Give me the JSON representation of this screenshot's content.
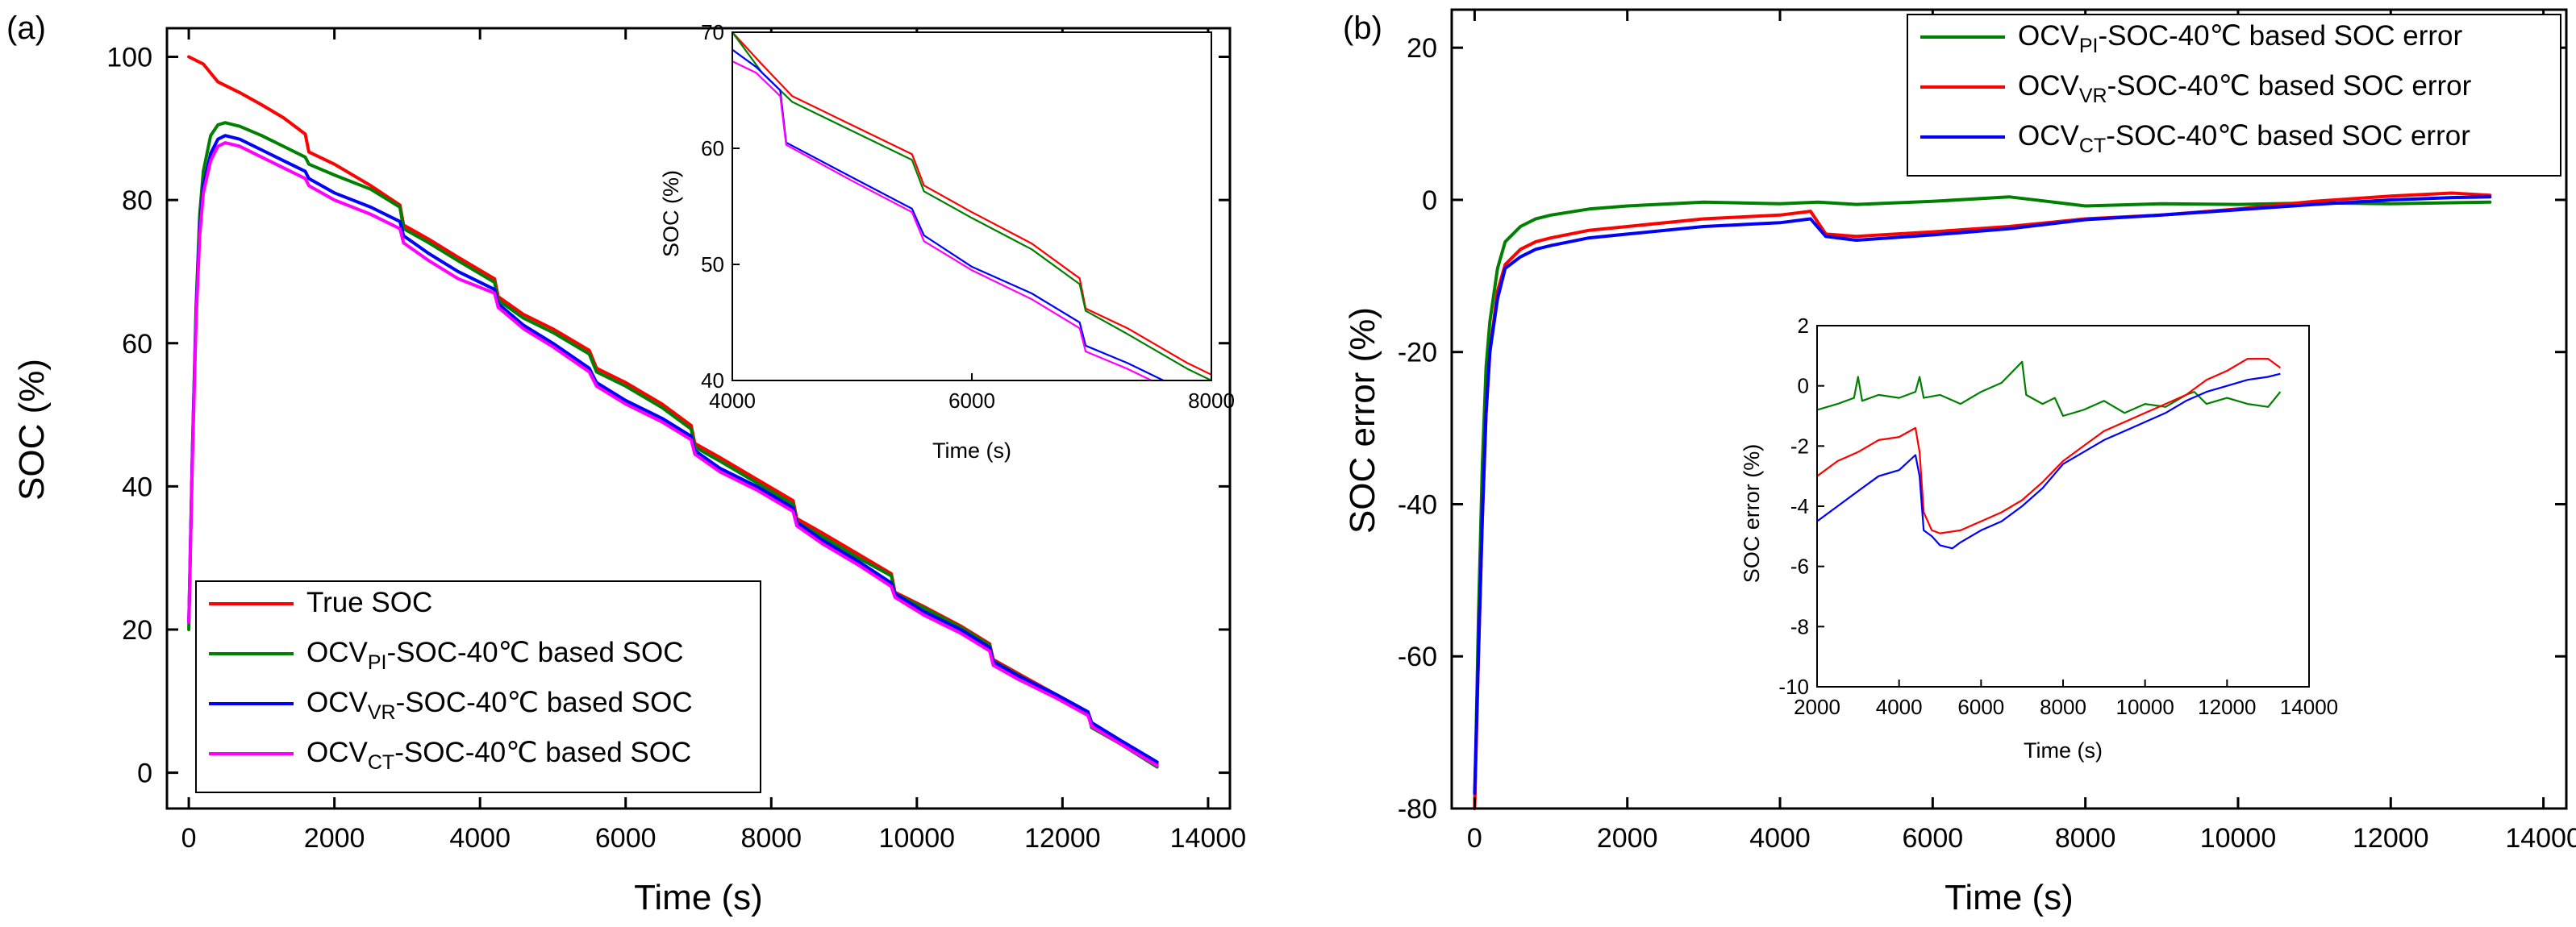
{
  "chart_data": [
    {
      "panel": "(a)",
      "type": "line",
      "title": "",
      "xlabel": "Time (s)",
      "ylabel": "SOC (%)",
      "xlim": [
        -300,
        14300
      ],
      "ylim": [
        -5,
        104
      ],
      "xticks": [
        0,
        2000,
        4000,
        6000,
        8000,
        10000,
        12000,
        14000
      ],
      "yticks": [
        0,
        20,
        40,
        60,
        80,
        100
      ],
      "legend_position": "bottom-left",
      "series": [
        {
          "key": "true",
          "name": "True SOC",
          "label_main": "True SOC",
          "label_sub": "",
          "label_rest": "",
          "color": "#ff0000",
          "x": [
            0,
            200,
            400,
            700,
            1000,
            1300,
            1600,
            1650,
            2000,
            2500,
            2900,
            2950,
            3300,
            3700,
            4200,
            4250,
            4600,
            5000,
            5500,
            5600,
            6000,
            6500,
            6900,
            6950,
            7300,
            7800,
            8300,
            8350,
            8700,
            9200,
            9650,
            9700,
            10100,
            10600,
            11000,
            11050,
            11400,
            11900,
            12350,
            12400,
            12800,
            13300
          ],
          "y": [
            100,
            99,
            96.5,
            95,
            93.3,
            91.5,
            89.2,
            86.7,
            85,
            82,
            79.3,
            76.5,
            74.5,
            72,
            69,
            66.5,
            64,
            62,
            59,
            56.5,
            54.5,
            51.5,
            48.5,
            46,
            44,
            41,
            38,
            35.5,
            33.5,
            30.5,
            27.8,
            25.2,
            23.2,
            20.5,
            18,
            15.8,
            13.8,
            11,
            8.5,
            6.5,
            4.2,
            1.2
          ]
        },
        {
          "key": "pi",
          "name": "OCVPI-SOC-40℃ based SOC",
          "label_main": "OCV",
          "label_sub": "PI",
          "label_rest": "-SOC-40℃ based SOC",
          "color": "#008000",
          "x": [
            0,
            50,
            100,
            150,
            200,
            300,
            400,
            500,
            700,
            1000,
            1300,
            1600,
            1650,
            2000,
            2500,
            2900,
            2950,
            3300,
            3700,
            4200,
            4250,
            4600,
            5000,
            5500,
            5600,
            6000,
            6500,
            6900,
            6950,
            7300,
            7800,
            8300,
            8350,
            8700,
            9200,
            9650,
            9700,
            10100,
            10600,
            11000,
            11050,
            11400,
            11900,
            12350,
            12400,
            12800,
            13300
          ],
          "y": [
            20,
            45,
            65,
            78,
            84,
            89,
            90.5,
            90.8,
            90.3,
            89,
            87.5,
            86,
            85,
            83.5,
            81.5,
            79,
            76,
            74,
            71.5,
            68.5,
            66,
            63.5,
            61.5,
            58.5,
            56,
            54,
            51,
            48,
            45.5,
            43.5,
            40.5,
            37.5,
            35,
            33,
            30,
            27.5,
            25,
            23,
            20.3,
            17.8,
            15.6,
            13.6,
            10.8,
            8.3,
            6.3,
            4,
            0.8
          ]
        },
        {
          "key": "vr",
          "name": "OCVVR-SOC-40℃ based SOC",
          "label_main": "OCV",
          "label_sub": "VR",
          "label_rest": "-SOC-40℃ based SOC",
          "color": "#0000ff",
          "x": [
            0,
            50,
            100,
            150,
            200,
            300,
            400,
            500,
            700,
            1000,
            1300,
            1600,
            1650,
            2000,
            2500,
            2900,
            2950,
            3300,
            3700,
            4200,
            4250,
            4600,
            5000,
            5500,
            5600,
            6000,
            6500,
            6900,
            6950,
            7300,
            7800,
            8300,
            8350,
            8700,
            9200,
            9650,
            9700,
            10100,
            10600,
            11000,
            11050,
            11400,
            11900,
            12350,
            12400,
            12800,
            13300
          ],
          "y": [
            21,
            45,
            64,
            76,
            82,
            86.5,
            88.5,
            89,
            88.5,
            87,
            85.5,
            84,
            83,
            81,
            79,
            77,
            75,
            72.5,
            70,
            67.5,
            65.5,
            62.5,
            60,
            56.5,
            54.5,
            52,
            49.5,
            47,
            45,
            42.5,
            40,
            37,
            35,
            32.5,
            29.5,
            26.5,
            25,
            22.5,
            20,
            17.5,
            15.5,
            13.5,
            11,
            8.5,
            7,
            4.5,
            1.5
          ]
        },
        {
          "key": "ct",
          "name": "OCVCT-SOC-40℃ based SOC",
          "label_main": "OCV",
          "label_sub": "CT",
          "label_rest": "-SOC-40℃ based SOC",
          "color": "#ff00ff",
          "x": [
            0,
            50,
            100,
            150,
            200,
            300,
            400,
            500,
            700,
            1000,
            1300,
            1600,
            1650,
            2000,
            2500,
            2900,
            2950,
            3300,
            3700,
            4200,
            4250,
            4600,
            5000,
            5500,
            5600,
            6000,
            6500,
            6900,
            6950,
            7300,
            7800,
            8300,
            8350,
            8700,
            9200,
            9650,
            9700,
            10100,
            10600,
            11000,
            11050,
            11400,
            11900,
            12350,
            12400,
            12800,
            13300
          ],
          "y": [
            21,
            44,
            63,
            75,
            81,
            85.5,
            87.5,
            88,
            87.5,
            86,
            84.5,
            83,
            82,
            80,
            78,
            76,
            74,
            71.5,
            69,
            67,
            65,
            62,
            59.5,
            56,
            54,
            51.5,
            49,
            46.5,
            44.5,
            42,
            39.5,
            36.5,
            34.5,
            32,
            29,
            26,
            24.5,
            22,
            19.5,
            17,
            15,
            13,
            10.5,
            8,
            6.5,
            4,
            1
          ]
        }
      ],
      "inset": {
        "xlabel": "Time (s)",
        "ylabel": "SOC (%)",
        "xlim": [
          4000,
          8000
        ],
        "ylim": [
          40,
          70
        ],
        "xticks": [
          4000,
          6000,
          8000
        ],
        "yticks": [
          40,
          50,
          60,
          70
        ],
        "series": [
          {
            "key": "true",
            "color": "#ff0000",
            "x": [
              4000,
              4250,
              4500,
              5000,
              5500,
              5600,
              6000,
              6500,
              6900,
              6950,
              7300,
              7800,
              8000
            ],
            "y": [
              70,
              67.2,
              64.5,
              62,
              59.5,
              56.8,
              54.5,
              51.8,
              48.8,
              46.2,
              44.5,
              41.5,
              40.5
            ]
          },
          {
            "key": "pi",
            "color": "#008000",
            "x": [
              4000,
              4250,
              4500,
              5000,
              5500,
              5600,
              6000,
              6500,
              6900,
              6950,
              7300,
              7800,
              8000
            ],
            "y": [
              70,
              66.5,
              64,
              61.5,
              59,
              56.3,
              54,
              51.3,
              48.3,
              46,
              44,
              41,
              40
            ]
          },
          {
            "key": "vr",
            "color": "#0000ff",
            "x": [
              4000,
              4200,
              4400,
              4450,
              5000,
              5500,
              5600,
              6000,
              6500,
              6900,
              6950,
              7300,
              7600
            ],
            "y": [
              68.5,
              67,
              65,
              60.5,
              57.5,
              54.8,
              52.5,
              49.8,
              47.5,
              45,
              43,
              41.5,
              40
            ]
          },
          {
            "key": "ct",
            "color": "#ff00ff",
            "x": [
              4000,
              4200,
              4400,
              4450,
              5000,
              5500,
              5600,
              6000,
              6500,
              6900,
              6950,
              7300,
              7500
            ],
            "y": [
              67.5,
              66.5,
              64.5,
              60.3,
              57.2,
              54.5,
              52,
              49.5,
              47,
              44.5,
              42.5,
              41,
              40
            ]
          }
        ]
      }
    },
    {
      "panel": "(b)",
      "type": "line",
      "title": "",
      "xlabel": "Time (s)",
      "ylabel": "SOC error (%)",
      "xlim": [
        -300,
        14300
      ],
      "ylim": [
        -80,
        25
      ],
      "xticks": [
        0,
        2000,
        4000,
        6000,
        8000,
        10000,
        12000,
        14000
      ],
      "yticks": [
        -80,
        -60,
        -40,
        -20,
        0,
        20
      ],
      "legend_position": "top-right",
      "series": [
        {
          "key": "pi",
          "name": "OCVPI-SOC-40℃ based SOC error",
          "label_main": "OCV",
          "label_sub": "PI",
          "label_rest": "-SOC-40℃ based SOC error",
          "color": "#008000",
          "x": [
            0,
            50,
            100,
            150,
            200,
            300,
            400,
            600,
            800,
            1000,
            1500,
            2000,
            3000,
            4000,
            4500,
            5000,
            6000,
            7000,
            8000,
            9000,
            10000,
            11000,
            12000,
            13300
          ],
          "y": [
            -80,
            -55,
            -35,
            -22,
            -16,
            -9,
            -5.5,
            -3.5,
            -2.5,
            -2,
            -1.2,
            -0.8,
            -0.3,
            -0.5,
            -0.3,
            -0.6,
            -0.2,
            0.4,
            -0.8,
            -0.5,
            -0.6,
            -0.4,
            -0.5,
            -0.3
          ]
        },
        {
          "key": "vr",
          "name": "OCVVR-SOC-40℃ based SOC error",
          "label_main": "OCV",
          "label_sub": "VR",
          "label_rest": "-SOC-40℃ based SOC error",
          "color": "#ff0000",
          "x": [
            0,
            50,
            100,
            150,
            200,
            300,
            400,
            600,
            800,
            1000,
            1500,
            2000,
            3000,
            4000,
            4400,
            4600,
            5000,
            6000,
            7000,
            8000,
            9000,
            10000,
            11000,
            12000,
            12800,
            13300
          ],
          "y": [
            -80,
            -60,
            -42,
            -28,
            -20,
            -12,
            -8.5,
            -6.5,
            -5.5,
            -5,
            -4,
            -3.5,
            -2.5,
            -2,
            -1.5,
            -4.5,
            -4.8,
            -4.2,
            -3.5,
            -2.5,
            -2,
            -1.2,
            -0.2,
            0.5,
            0.9,
            0.6
          ]
        },
        {
          "key": "ct",
          "name": "OCVCT-SOC-40℃ based SOC error",
          "label_main": "OCV",
          "label_sub": "CT",
          "label_rest": "-SOC-40℃ based SOC error",
          "color": "#0000ff",
          "x": [
            0,
            50,
            100,
            150,
            200,
            300,
            400,
            600,
            800,
            1000,
            1500,
            2000,
            3000,
            4000,
            4400,
            4600,
            5000,
            6000,
            7000,
            8000,
            9000,
            10000,
            11000,
            12000,
            12800,
            13300
          ],
          "y": [
            -78,
            -60,
            -42,
            -28,
            -20,
            -13,
            -9,
            -7.5,
            -6.5,
            -6,
            -5,
            -4.5,
            -3.5,
            -3,
            -2.5,
            -4.8,
            -5.3,
            -4.6,
            -3.8,
            -2.6,
            -2,
            -1.3,
            -0.6,
            0,
            0.3,
            0.4
          ]
        }
      ],
      "inset": {
        "xlabel": "Time (s)",
        "ylabel": "SOC error (%)",
        "xlim": [
          2000,
          14000
        ],
        "ylim": [
          -10,
          2
        ],
        "xticks": [
          2000,
          4000,
          6000,
          8000,
          10000,
          12000,
          14000
        ],
        "yticks": [
          -10,
          -8,
          -6,
          -4,
          -2,
          0,
          2
        ],
        "series": [
          {
            "key": "pi",
            "color": "#008000",
            "x": [
              2000,
              2500,
              2900,
              3000,
              3100,
              3500,
              4000,
              4400,
              4500,
              4600,
              5000,
              5500,
              6000,
              6500,
              7000,
              7100,
              7500,
              7800,
              8000,
              8500,
              9000,
              9500,
              10000,
              10500,
              11000,
              11200,
              11500,
              12000,
              12500,
              13000,
              13300
            ],
            "y": [
              -0.8,
              -0.6,
              -0.4,
              0.3,
              -0.5,
              -0.3,
              -0.4,
              -0.2,
              0.3,
              -0.4,
              -0.3,
              -0.6,
              -0.2,
              0.1,
              0.8,
              -0.3,
              -0.6,
              -0.4,
              -1.0,
              -0.8,
              -0.5,
              -0.9,
              -0.6,
              -0.7,
              -0.3,
              -0.2,
              -0.6,
              -0.4,
              -0.6,
              -0.7,
              -0.2
            ]
          },
          {
            "key": "vr",
            "color": "#ff0000",
            "x": [
              2000,
              2500,
              3000,
              3500,
              4000,
              4400,
              4500,
              4600,
              4800,
              5000,
              5500,
              6000,
              6500,
              7000,
              7500,
              8000,
              8500,
              9000,
              9500,
              10000,
              10500,
              11000,
              11500,
              12000,
              12500,
              13000,
              13300
            ],
            "y": [
              -3,
              -2.5,
              -2.2,
              -1.8,
              -1.7,
              -1.4,
              -2.2,
              -4.2,
              -4.8,
              -4.9,
              -4.8,
              -4.5,
              -4.2,
              -3.8,
              -3.2,
              -2.5,
              -2.0,
              -1.5,
              -1.2,
              -0.9,
              -0.6,
              -0.3,
              0.2,
              0.5,
              0.9,
              0.9,
              0.6
            ]
          },
          {
            "key": "ct",
            "color": "#0000ff",
            "x": [
              2000,
              2500,
              3000,
              3500,
              4000,
              4400,
              4500,
              4600,
              4800,
              5000,
              5300,
              5500,
              6000,
              6500,
              7000,
              7500,
              8000,
              8500,
              9000,
              9500,
              10000,
              10500,
              11000,
              11500,
              12000,
              12500,
              13000,
              13300
            ],
            "y": [
              -4.5,
              -4.0,
              -3.5,
              -3.0,
              -2.8,
              -2.3,
              -3.0,
              -4.8,
              -5.0,
              -5.3,
              -5.4,
              -5.2,
              -4.8,
              -4.5,
              -4.0,
              -3.4,
              -2.6,
              -2.2,
              -1.8,
              -1.5,
              -1.2,
              -0.9,
              -0.5,
              -0.2,
              0,
              0.2,
              0.3,
              0.4
            ]
          }
        ]
      }
    }
  ]
}
